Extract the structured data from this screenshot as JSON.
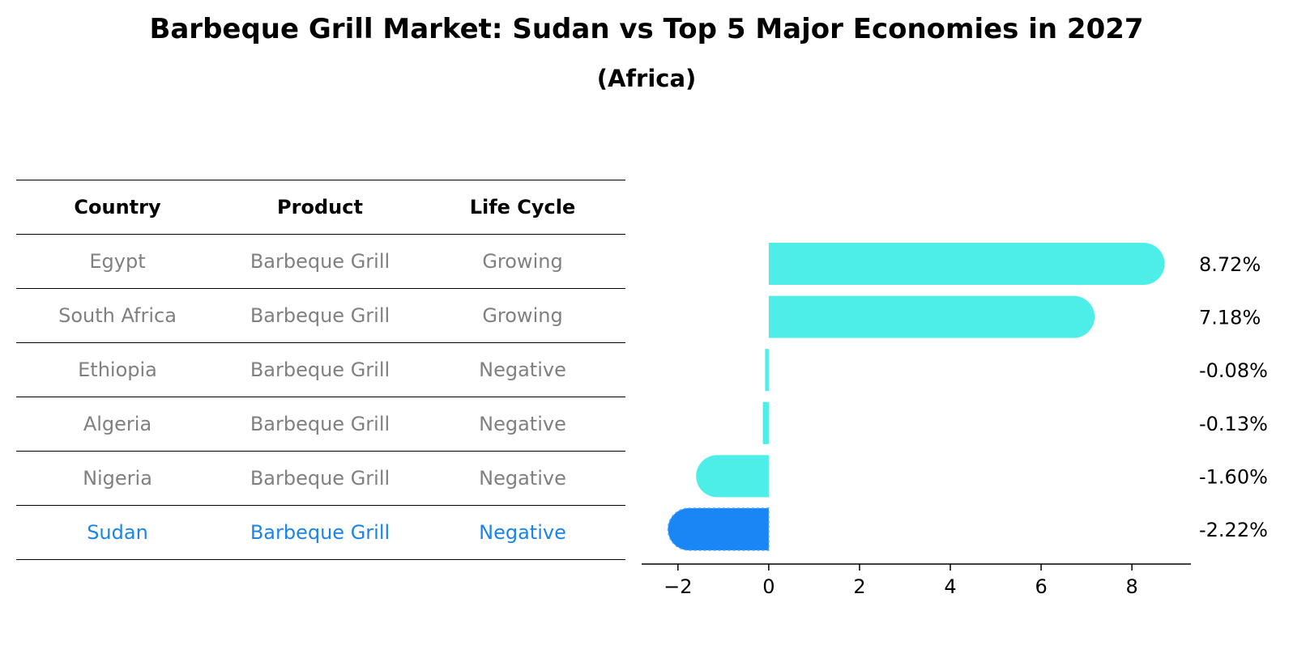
{
  "title": "Barbeque Grill Market: Sudan vs Top 5 Major Economies in 2027",
  "subtitle": "(Africa)",
  "table": {
    "headers": [
      "Country",
      "Product",
      "Life Cycle"
    ],
    "rows": [
      {
        "country": "Egypt",
        "product": "Barbeque Grill",
        "life_cycle": "Growing"
      },
      {
        "country": "South Africa",
        "product": "Barbeque Grill",
        "life_cycle": "Growing"
      },
      {
        "country": "Ethiopia",
        "product": "Barbeque Grill",
        "life_cycle": "Negative"
      },
      {
        "country": "Algeria",
        "product": "Barbeque Grill",
        "life_cycle": "Negative"
      },
      {
        "country": "Nigeria",
        "product": "Barbeque Grill",
        "life_cycle": "Negative"
      },
      {
        "country": "Sudan",
        "product": "Barbeque Grill",
        "life_cycle": "Negative"
      }
    ],
    "highlight_country": "Sudan"
  },
  "colors": {
    "bar": "#4deee8",
    "highlight_bar": "#1a85f5",
    "highlight_text": "#1a85e6",
    "muted_text": "#808080"
  },
  "chart_data": {
    "type": "bar",
    "orientation": "horizontal",
    "categories": [
      "Egypt",
      "South Africa",
      "Ethiopia",
      "Algeria",
      "Nigeria",
      "Sudan"
    ],
    "values": [
      8.72,
      7.18,
      -0.08,
      -0.13,
      -1.6,
      -2.22
    ],
    "value_labels": [
      "8.72%",
      "7.18%",
      "-0.08%",
      "-0.13%",
      "-1.60%",
      "-2.22%"
    ],
    "x_ticks": [
      -2,
      0,
      2,
      4,
      6,
      8
    ],
    "x_tick_labels": [
      "−2",
      "0",
      "2",
      "4",
      "6",
      "8"
    ],
    "xlim": [
      -2.8,
      9.3
    ],
    "highlight": "Sudan",
    "grid": false
  }
}
